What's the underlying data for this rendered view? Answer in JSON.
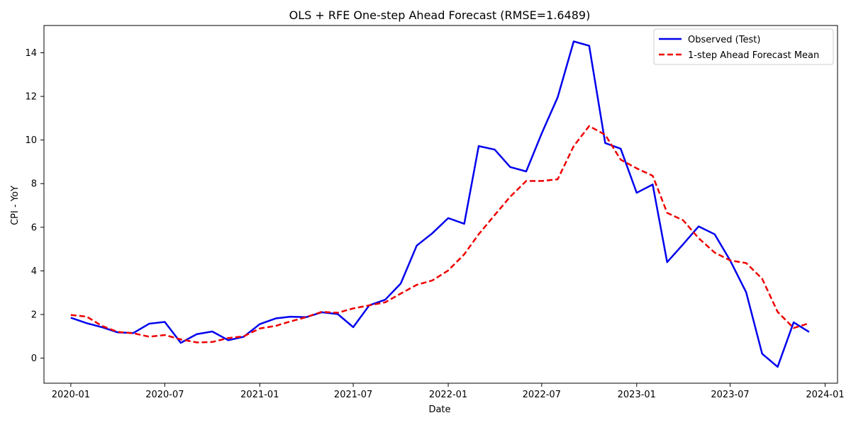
{
  "chart_data": {
    "type": "line",
    "title": "OLS + RFE One-step Ahead Forecast (RMSE=1.6489)",
    "xlabel": "Date",
    "ylabel": "CPI - YoY",
    "xlim": [
      "2019-11-10",
      "2024-01-25"
    ],
    "ylim": [
      -1.15,
      15.25
    ],
    "x_ticks": [
      "2020-01",
      "2020-07",
      "2021-01",
      "2021-07",
      "2022-01",
      "2022-07",
      "2023-01",
      "2023-07",
      "2024-01"
    ],
    "y_ticks": [
      0,
      2,
      4,
      6,
      8,
      10,
      12,
      14
    ],
    "grid": false,
    "legend_position": "upper-right",
    "x": [
      "2020-01-01",
      "2020-02-01",
      "2020-03-01",
      "2020-04-01",
      "2020-05-01",
      "2020-06-01",
      "2020-07-01",
      "2020-08-01",
      "2020-09-01",
      "2020-10-01",
      "2020-11-01",
      "2020-12-01",
      "2021-01-01",
      "2021-02-01",
      "2021-03-01",
      "2021-04-01",
      "2021-05-01",
      "2021-06-01",
      "2021-07-01",
      "2021-08-01",
      "2021-09-01",
      "2021-10-01",
      "2021-11-01",
      "2021-12-01",
      "2022-01-01",
      "2022-02-01",
      "2022-03-01",
      "2022-04-01",
      "2022-05-01",
      "2022-06-01",
      "2022-07-01",
      "2022-08-01",
      "2022-09-01",
      "2022-10-01",
      "2022-11-01",
      "2022-12-01",
      "2023-01-01",
      "2023-02-01",
      "2023-03-01",
      "2023-04-01",
      "2023-05-01",
      "2023-06-01",
      "2023-07-01",
      "2023-08-01",
      "2023-09-01",
      "2023-10-01",
      "2023-11-01",
      "2023-12-01"
    ],
    "series": [
      {
        "name": "Observed (Test)",
        "color": "#0000ee",
        "style": "solid",
        "values": [
          1.85,
          1.6,
          1.42,
          1.18,
          1.15,
          1.58,
          1.66,
          0.7,
          1.1,
          1.22,
          0.82,
          0.98,
          1.56,
          1.82,
          1.9,
          1.88,
          2.1,
          2.02,
          1.42,
          2.42,
          2.68,
          3.42,
          5.16,
          5.72,
          6.42,
          6.16,
          9.72,
          9.56,
          8.76,
          8.56,
          10.3,
          11.96,
          14.52,
          14.32,
          9.86,
          9.6,
          7.58,
          7.96,
          4.4,
          5.22,
          6.04,
          5.68,
          4.48,
          3.02,
          0.2,
          -0.4,
          1.64,
          1.2
        ]
      },
      {
        "name": "1-step Ahead Forecast Mean",
        "color": "#ee0000",
        "style": "dashed",
        "values": [
          1.98,
          1.9,
          1.48,
          1.2,
          1.14,
          0.98,
          1.06,
          0.86,
          0.72,
          0.74,
          0.92,
          1.0,
          1.36,
          1.48,
          1.68,
          1.88,
          2.12,
          2.08,
          2.28,
          2.42,
          2.56,
          2.96,
          3.36,
          3.56,
          4.02,
          4.76,
          5.68,
          6.56,
          7.4,
          8.12,
          8.12,
          8.2,
          9.72,
          10.64,
          10.24,
          9.1,
          8.7,
          8.36,
          6.66,
          6.32,
          5.5,
          4.84,
          4.48,
          4.36,
          3.64,
          2.12,
          1.38,
          1.6
        ]
      }
    ]
  }
}
